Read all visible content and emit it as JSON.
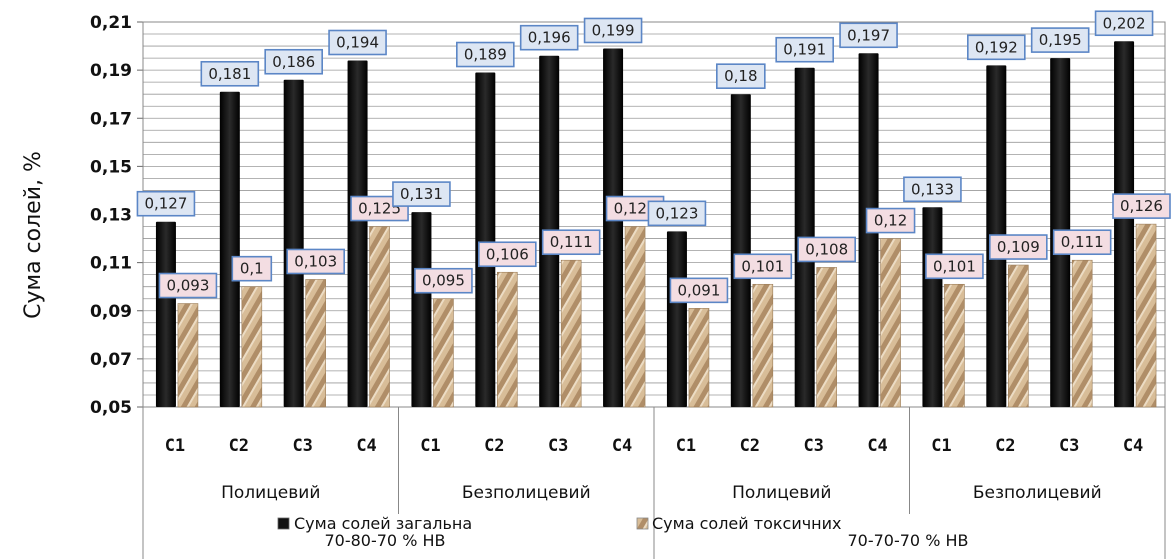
{
  "chart_data": {
    "type": "bar",
    "ylabel": "Сума солей, %",
    "ylim": [
      0.05,
      0.21
    ],
    "yticks": [
      "0,05",
      "0,07",
      "0,09",
      "0,11",
      "0,13",
      "0,15",
      "0,17",
      "0,19",
      "0,21"
    ],
    "grid": true,
    "categories": [
      "С1",
      "С2",
      "С3",
      "С4",
      "С1",
      "С2",
      "С3",
      "С4",
      "С1",
      "С2",
      "С3",
      "С4",
      "С1",
      "С2",
      "С3",
      "С4"
    ],
    "groups": [
      "Полицевий",
      "Безполицевий",
      "Полицевий",
      "Безполицевий"
    ],
    "regimes": [
      "70-80-70 % НВ",
      "70-70-70 % НВ"
    ],
    "series": [
      {
        "name": "Сума солей загальна",
        "color": "#111111",
        "label_bg": "#dde6f3",
        "label_border": "#5b86c6",
        "values": [
          0.127,
          0.181,
          0.186,
          0.194,
          0.131,
          0.189,
          0.196,
          0.199,
          0.123,
          0.18,
          0.191,
          0.197,
          0.133,
          0.192,
          0.195,
          0.202
        ],
        "labels": [
          "0,127",
          "0,181",
          "0,186",
          "0,194",
          "0,131",
          "0,189",
          "0,196",
          "0,199",
          "0,123",
          "0,18",
          "0,191",
          "0,197",
          "0,133",
          "0,192",
          "0,195",
          "0,202"
        ]
      },
      {
        "name": "Сума солей токсичних",
        "color": "#c8aa85",
        "label_bg": "#f3dde2",
        "label_border": "#5b86c6",
        "values": [
          0.093,
          0.1,
          0.103,
          0.125,
          0.095,
          0.106,
          0.111,
          0.125,
          0.091,
          0.101,
          0.108,
          0.12,
          0.101,
          0.109,
          0.111,
          0.126
        ],
        "labels": [
          "0,093",
          "0,1",
          "0,103",
          "0,125",
          "0,095",
          "0,106",
          "0,111",
          "0,125",
          "0,091",
          "0,101",
          "0,108",
          "0,12",
          "0,101",
          "0,109",
          "0,111",
          "0,126"
        ]
      }
    ],
    "legend": "bottom"
  }
}
